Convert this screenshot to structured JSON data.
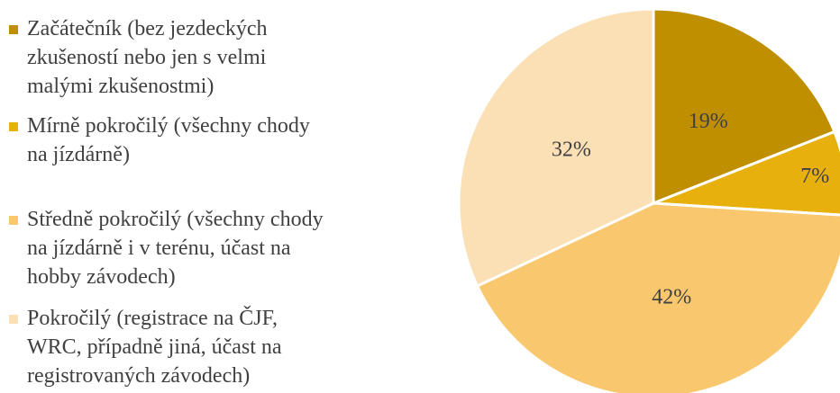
{
  "chart_data": {
    "type": "pie",
    "categories": [
      "Začátečník (bez jezdeckých zkušeností nebo jen s velmi malými zkušenostmi)",
      "Mírně pokročilý (všechny chody na jízdárně)",
      "Středně pokročilý (všechny chody na jízdárně i v terénu, účast na hobby závodech)",
      "Pokročilý (registrace na ČJF, WRC, případně jiná, účast na registrovaných závodech)"
    ],
    "values": [
      19,
      7,
      42,
      32
    ],
    "value_labels": [
      "19%",
      "7%",
      "42%",
      "32%"
    ],
    "colors": [
      "#bf8f00",
      "#e8b00d",
      "#f9c76e",
      "#fbe0b5"
    ],
    "legend": "left"
  }
}
